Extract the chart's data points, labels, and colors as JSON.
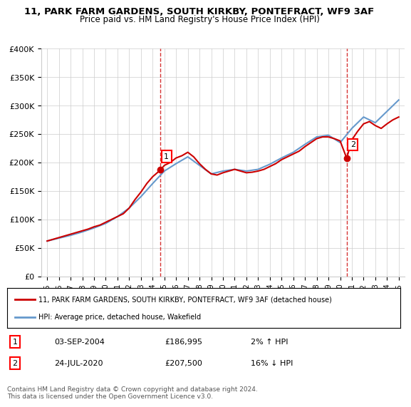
{
  "title": "11, PARK FARM GARDENS, SOUTH KIRKBY, PONTEFRACT, WF9 3AF",
  "subtitle": "Price paid vs. HM Land Registry's House Price Index (HPI)",
  "legend_line1": "11, PARK FARM GARDENS, SOUTH KIRKBY, PONTEFRACT, WF9 3AF (detached house)",
  "legend_line2": "HPI: Average price, detached house, Wakefield",
  "annotation1_label": "1",
  "annotation1_date": "03-SEP-2004",
  "annotation1_price": "£186,995",
  "annotation1_hpi": "2% ↑ HPI",
  "annotation2_label": "2",
  "annotation2_date": "24-JUL-2020",
  "annotation2_price": "£207,500",
  "annotation2_hpi": "16% ↓ HPI",
  "footer": "Contains HM Land Registry data © Crown copyright and database right 2024.\nThis data is licensed under the Open Government Licence v3.0.",
  "sale1_x": 2004.67,
  "sale1_y": 186995,
  "sale2_x": 2020.56,
  "sale2_y": 207500,
  "ylim": [
    0,
    400000
  ],
  "xlim": [
    1994.5,
    2025.5
  ],
  "red_color": "#cc0000",
  "blue_color": "#6699cc",
  "grid_color": "#cccccc",
  "background_color": "#ffffff",
  "hpi_years": [
    1995,
    1996,
    1997,
    1998,
    1999,
    2000,
    2001,
    2002,
    2003,
    2004,
    2005,
    2006,
    2007,
    2008,
    2009,
    2010,
    2011,
    2012,
    2013,
    2014,
    2015,
    2016,
    2017,
    2018,
    2019,
    2020,
    2021,
    2022,
    2023,
    2024,
    2025
  ],
  "hpi_values": [
    62000,
    67000,
    72000,
    78000,
    85000,
    93000,
    105000,
    120000,
    140000,
    163000,
    185000,
    198000,
    210000,
    195000,
    180000,
    185000,
    188000,
    185000,
    188000,
    197000,
    208000,
    218000,
    232000,
    245000,
    248000,
    235000,
    260000,
    280000,
    270000,
    290000,
    310000
  ],
  "price_years": [
    1995,
    1995.5,
    1996,
    1996.5,
    1997,
    1997.5,
    1998,
    1998.5,
    1999,
    1999.5,
    2000,
    2000.5,
    2001,
    2001.5,
    2002,
    2002.5,
    2003,
    2003.5,
    2004,
    2004.67,
    2005,
    2005.5,
    2006,
    2006.5,
    2007,
    2007.5,
    2008,
    2008.5,
    2009,
    2009.5,
    2010,
    2010.5,
    2011,
    2011.5,
    2012,
    2012.5,
    2013,
    2013.5,
    2014,
    2014.5,
    2015,
    2015.5,
    2016,
    2016.5,
    2017,
    2017.5,
    2018,
    2018.5,
    2019,
    2019.5,
    2020,
    2020.56,
    2021,
    2021.5,
    2022,
    2022.5,
    2023,
    2023.5,
    2024,
    2024.5,
    2025
  ],
  "price_values": [
    62000,
    65000,
    68000,
    71000,
    74000,
    77000,
    80000,
    83000,
    87000,
    90000,
    95000,
    100000,
    105000,
    110000,
    120000,
    135000,
    148000,
    163000,
    175000,
    186995,
    195000,
    200000,
    208000,
    212000,
    218000,
    210000,
    198000,
    188000,
    180000,
    178000,
    182000,
    185000,
    188000,
    185000,
    182000,
    183000,
    185000,
    188000,
    193000,
    198000,
    205000,
    210000,
    215000,
    220000,
    228000,
    235000,
    242000,
    245000,
    245000,
    242000,
    238000,
    207500,
    240000,
    255000,
    268000,
    272000,
    265000,
    260000,
    268000,
    275000,
    280000
  ]
}
